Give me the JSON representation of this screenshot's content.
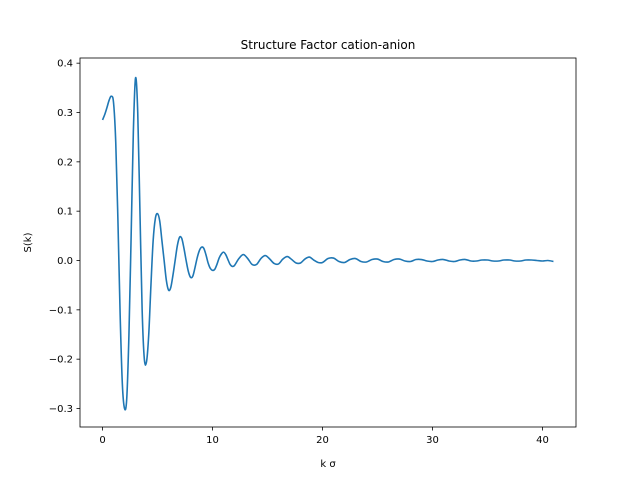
{
  "chart_data": {
    "type": "line",
    "title": "Structure Factor cation-anion",
    "xlabel": "k σ",
    "ylabel": "S(k)",
    "xlim": [
      -2.05,
      43.05
    ],
    "ylim": [
      -0.3375,
      0.4105
    ],
    "xticks": [
      0,
      10,
      20,
      30,
      40
    ],
    "yticks": [
      -0.3,
      -0.2,
      -0.1,
      0.0,
      0.1,
      0.2,
      0.3,
      0.4
    ],
    "xtick_labels": [
      "0",
      "10",
      "20",
      "30",
      "40"
    ],
    "ytick_labels": [
      "−0.3",
      "−0.2",
      "−0.1",
      "0.0",
      "0.1",
      "0.2",
      "0.3",
      "0.4"
    ],
    "grid": false,
    "series": [
      {
        "color": "#1f77b4",
        "x": [
          0.0,
          0.2,
          0.4,
          0.6,
          0.8,
          1.0,
          1.2,
          1.4,
          1.6,
          1.8,
          2.0,
          2.2,
          2.4,
          2.6,
          2.8,
          3.0,
          3.2,
          3.4,
          3.6,
          3.8,
          4.0,
          4.2,
          4.4,
          4.6,
          4.8,
          5.0,
          5.2,
          5.4,
          5.6,
          5.8,
          6.0,
          6.2,
          6.4,
          6.6,
          6.8,
          7.0,
          7.2,
          7.4,
          7.6,
          7.8,
          8.0,
          8.2,
          8.4,
          8.6,
          8.8,
          9.0,
          9.2,
          9.4,
          9.6,
          9.8,
          10.0,
          10.2,
          10.4,
          10.6,
          10.8,
          11.0,
          11.2,
          11.4,
          11.6,
          11.8,
          12.0,
          12.4,
          12.8,
          13.2,
          13.6,
          14.0,
          14.4,
          14.8,
          15.2,
          15.6,
          16.0,
          16.4,
          16.8,
          17.2,
          17.6,
          18.0,
          18.4,
          18.8,
          19.2,
          19.6,
          20.0,
          20.5,
          21.0,
          21.5,
          22.0,
          22.5,
          23.0,
          23.5,
          24.0,
          24.5,
          25.0,
          25.5,
          26.0,
          26.5,
          27.0,
          27.5,
          28.0,
          28.5,
          29.0,
          29.5,
          30.0,
          30.5,
          31.0,
          31.5,
          32.0,
          32.5,
          33.0,
          33.5,
          34.0,
          34.5,
          35.0,
          35.5,
          36.0,
          36.5,
          37.0,
          37.5,
          38.0,
          38.5,
          39.0,
          39.5,
          40.0,
          40.5,
          41.0
        ],
        "y": [
          0.285,
          0.296,
          0.31,
          0.325,
          0.333,
          0.32,
          0.24,
          0.08,
          -0.11,
          -0.25,
          -0.3,
          -0.28,
          -0.15,
          0.05,
          0.26,
          0.37,
          0.3,
          0.1,
          -0.1,
          -0.2,
          -0.205,
          -0.15,
          -0.05,
          0.04,
          0.085,
          0.095,
          0.08,
          0.04,
          0.0,
          -0.04,
          -0.06,
          -0.055,
          -0.03,
          0.0,
          0.03,
          0.047,
          0.045,
          0.025,
          0.0,
          -0.022,
          -0.034,
          -0.032,
          -0.015,
          0.005,
          0.02,
          0.027,
          0.025,
          0.012,
          -0.005,
          -0.016,
          -0.02,
          -0.018,
          -0.008,
          0.005,
          0.013,
          0.017,
          0.012,
          0.002,
          -0.008,
          -0.012,
          -0.01,
          0.004,
          0.012,
          0.004,
          -0.008,
          -0.008,
          0.004,
          0.01,
          0.003,
          -0.006,
          -0.007,
          0.003,
          0.008,
          0.002,
          -0.005,
          -0.005,
          0.003,
          0.007,
          0.001,
          -0.004,
          -0.004,
          0.004,
          0.005,
          -0.002,
          -0.004,
          0.002,
          0.004,
          -0.002,
          -0.003,
          0.002,
          0.003,
          -0.002,
          -0.003,
          0.002,
          0.003,
          -0.001,
          -0.002,
          0.002,
          0.002,
          -0.001,
          -0.002,
          0.001,
          0.002,
          -0.001,
          -0.002,
          0.001,
          0.002,
          -0.001,
          -0.001,
          0.001,
          0.001,
          -0.001,
          -0.001,
          0.001,
          0.001,
          -0.001,
          -0.001,
          0.001,
          0.001,
          0.0,
          -0.001,
          0.0,
          -0.002
        ]
      }
    ]
  }
}
